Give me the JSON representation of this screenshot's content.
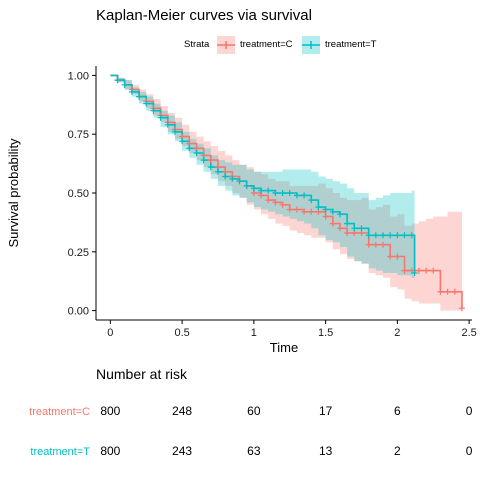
{
  "chart_data": {
    "type": "line",
    "title": "Kaplan-Meier curves via survival",
    "xlabel": "Time",
    "ylabel": "Survival probability",
    "xlim": [
      -0.1,
      2.52
    ],
    "ylim": [
      -0.04,
      1.04
    ],
    "xticks": [
      0,
      0.5,
      1,
      1.5,
      2,
      2.5
    ],
    "xtick_labels": [
      "0",
      "0.5",
      "1",
      "1.5",
      "2",
      "2.5"
    ],
    "yticks": [
      0,
      0.25,
      0.5,
      0.75,
      1
    ],
    "ytick_labels": [
      "0.00",
      "0.25",
      "0.50",
      "0.75",
      "1.00"
    ],
    "grid": false,
    "legend": {
      "title": "Strata",
      "position": "top",
      "entries": [
        "treatment=C",
        "treatment=T"
      ]
    },
    "series": [
      {
        "name": "treatment=C",
        "color": "#F8766D",
        "fill": "#F8766D",
        "x": [
          0,
          0.05,
          0.1,
          0.15,
          0.2,
          0.25,
          0.3,
          0.35,
          0.4,
          0.45,
          0.5,
          0.55,
          0.6,
          0.65,
          0.7,
          0.75,
          0.8,
          0.85,
          0.9,
          0.95,
          1.0,
          1.05,
          1.1,
          1.15,
          1.2,
          1.25,
          1.3,
          1.35,
          1.4,
          1.45,
          1.5,
          1.55,
          1.6,
          1.65,
          1.7,
          1.75,
          1.8,
          1.85,
          1.9,
          1.95,
          2.0,
          2.05,
          2.1,
          2.15,
          2.2,
          2.25,
          2.3,
          2.35,
          2.4,
          2.45
        ],
        "y": [
          1.0,
          0.98,
          0.96,
          0.94,
          0.91,
          0.89,
          0.86,
          0.83,
          0.8,
          0.77,
          0.74,
          0.71,
          0.69,
          0.66,
          0.64,
          0.61,
          0.59,
          0.57,
          0.55,
          0.53,
          0.5,
          0.49,
          0.47,
          0.46,
          0.45,
          0.43,
          0.43,
          0.42,
          0.42,
          0.42,
          0.4,
          0.37,
          0.35,
          0.33,
          0.33,
          0.33,
          0.28,
          0.28,
          0.28,
          0.23,
          0.23,
          0.17,
          0.17,
          0.17,
          0.17,
          0.17,
          0.08,
          0.08,
          0.08,
          0.01
        ],
        "lower": [
          1.0,
          0.97,
          0.94,
          0.92,
          0.89,
          0.86,
          0.83,
          0.8,
          0.76,
          0.73,
          0.7,
          0.67,
          0.64,
          0.61,
          0.58,
          0.55,
          0.53,
          0.5,
          0.48,
          0.45,
          0.43,
          0.41,
          0.39,
          0.37,
          0.36,
          0.34,
          0.33,
          0.32,
          0.31,
          0.31,
          0.29,
          0.26,
          0.24,
          0.22,
          0.21,
          0.2,
          0.16,
          0.15,
          0.14,
          0.1,
          0.09,
          0.05,
          0.04,
          0.03,
          0.03,
          0.03,
          0.0,
          0.0,
          0.0,
          0.0
        ],
        "upper": [
          1.0,
          0.99,
          0.98,
          0.96,
          0.94,
          0.92,
          0.9,
          0.87,
          0.84,
          0.82,
          0.79,
          0.76,
          0.74,
          0.72,
          0.7,
          0.68,
          0.66,
          0.64,
          0.62,
          0.61,
          0.59,
          0.58,
          0.56,
          0.55,
          0.55,
          0.53,
          0.53,
          0.53,
          0.53,
          0.54,
          0.52,
          0.5,
          0.48,
          0.47,
          0.47,
          0.48,
          0.43,
          0.44,
          0.45,
          0.4,
          0.41,
          0.36,
          0.37,
          0.38,
          0.39,
          0.4,
          0.4,
          0.42,
          0.42,
          0.4
        ]
      },
      {
        "name": "treatment=T",
        "color": "#00BFC4",
        "fill": "#00BFC4",
        "x": [
          0,
          0.05,
          0.1,
          0.15,
          0.2,
          0.25,
          0.3,
          0.35,
          0.4,
          0.45,
          0.5,
          0.55,
          0.6,
          0.65,
          0.7,
          0.75,
          0.8,
          0.85,
          0.9,
          0.95,
          1.0,
          1.05,
          1.1,
          1.15,
          1.2,
          1.25,
          1.3,
          1.35,
          1.4,
          1.45,
          1.5,
          1.55,
          1.6,
          1.65,
          1.7,
          1.75,
          1.8,
          1.85,
          1.9,
          1.95,
          2.0,
          2.05,
          2.1,
          2.12
        ],
        "y": [
          1.0,
          0.98,
          0.96,
          0.93,
          0.91,
          0.88,
          0.85,
          0.82,
          0.79,
          0.76,
          0.72,
          0.69,
          0.67,
          0.64,
          0.61,
          0.59,
          0.57,
          0.56,
          0.55,
          0.53,
          0.52,
          0.51,
          0.51,
          0.5,
          0.5,
          0.5,
          0.49,
          0.49,
          0.47,
          0.44,
          0.43,
          0.42,
          0.41,
          0.37,
          0.35,
          0.35,
          0.32,
          0.32,
          0.32,
          0.32,
          0.32,
          0.32,
          0.32,
          0.16
        ],
        "lower": [
          1.0,
          0.97,
          0.94,
          0.91,
          0.88,
          0.85,
          0.82,
          0.78,
          0.75,
          0.72,
          0.68,
          0.65,
          0.62,
          0.59,
          0.56,
          0.53,
          0.51,
          0.49,
          0.48,
          0.46,
          0.44,
          0.43,
          0.42,
          0.41,
          0.4,
          0.39,
          0.38,
          0.37,
          0.35,
          0.32,
          0.3,
          0.29,
          0.27,
          0.23,
          0.21,
          0.2,
          0.18,
          0.17,
          0.16,
          0.16,
          0.15,
          0.15,
          0.14,
          0.04
        ],
        "upper": [
          1.0,
          0.99,
          0.98,
          0.95,
          0.93,
          0.91,
          0.88,
          0.85,
          0.83,
          0.8,
          0.76,
          0.73,
          0.71,
          0.69,
          0.66,
          0.64,
          0.63,
          0.62,
          0.62,
          0.6,
          0.59,
          0.59,
          0.59,
          0.59,
          0.6,
          0.6,
          0.6,
          0.6,
          0.59,
          0.57,
          0.56,
          0.55,
          0.54,
          0.52,
          0.5,
          0.5,
          0.47,
          0.48,
          0.49,
          0.5,
          0.5,
          0.5,
          0.51,
          0.7
        ]
      }
    ]
  },
  "risk_table": {
    "title": "Number at risk",
    "rows": [
      {
        "label": "treatment=C",
        "color": "#F8766D",
        "values": [
          "800",
          "248",
          "60",
          "17",
          "6",
          "0"
        ]
      },
      {
        "label": "treatment=T",
        "color": "#00BFC4",
        "values": [
          "800",
          "243",
          "63",
          "13",
          "2",
          "0"
        ]
      }
    ]
  }
}
